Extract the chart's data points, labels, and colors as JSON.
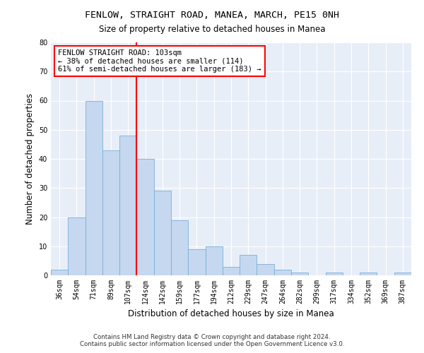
{
  "title1": "FENLOW, STRAIGHT ROAD, MANEA, MARCH, PE15 0NH",
  "title2": "Size of property relative to detached houses in Manea",
  "xlabel": "Distribution of detached houses by size in Manea",
  "ylabel": "Number of detached properties",
  "bar_labels": [
    "36sqm",
    "54sqm",
    "71sqm",
    "89sqm",
    "107sqm",
    "124sqm",
    "142sqm",
    "159sqm",
    "177sqm",
    "194sqm",
    "212sqm",
    "229sqm",
    "247sqm",
    "264sqm",
    "282sqm",
    "299sqm",
    "317sqm",
    "334sqm",
    "352sqm",
    "369sqm",
    "387sqm"
  ],
  "bar_values": [
    2,
    20,
    60,
    43,
    48,
    40,
    29,
    19,
    9,
    10,
    3,
    7,
    4,
    2,
    1,
    0,
    1,
    0,
    1,
    0,
    1
  ],
  "bar_color": "#c5d8f0",
  "bar_edge_color": "#7aafd4",
  "fig_bg_color": "#ffffff",
  "ax_bg_color": "#e8eef8",
  "grid_color": "#ffffff",
  "red_line_x": 4.5,
  "annotation_text_line1": "FENLOW STRAIGHT ROAD: 103sqm",
  "annotation_text_line2": "← 38% of detached houses are smaller (114)",
  "annotation_text_line3": "61% of semi-detached houses are larger (183) →",
  "ylim": [
    0,
    80
  ],
  "yticks": [
    0,
    10,
    20,
    30,
    40,
    50,
    60,
    70,
    80
  ],
  "footer_line1": "Contains HM Land Registry data © Crown copyright and database right 2024.",
  "footer_line2": "Contains public sector information licensed under the Open Government Licence v3.0."
}
